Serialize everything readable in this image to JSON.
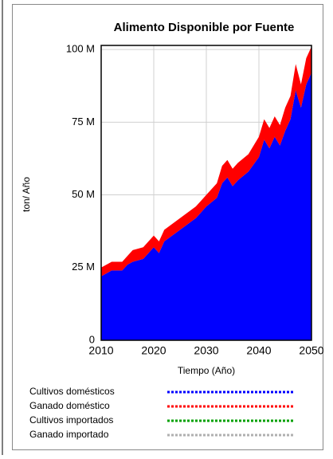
{
  "chart_data": {
    "type": "stacked-area",
    "title": "Alimento Disponible por Fuente",
    "xlabel": "Tiempo (Año)",
    "ylabel": "ton/ Año",
    "x": [
      2010,
      2012,
      2014,
      2015,
      2016,
      2018,
      2020,
      2021,
      2022,
      2025,
      2028,
      2030,
      2032,
      2033,
      2034,
      2035,
      2036,
      2038,
      2040,
      2041,
      2042,
      2043,
      2044,
      2045,
      2046,
      2047,
      2048,
      2049,
      2050
    ],
    "series": [
      {
        "name": "Cultivos domésticos",
        "color": "#0000ff",
        "values": [
          22,
          24,
          24,
          26,
          27,
          28,
          32,
          30,
          34,
          38,
          42,
          46,
          49,
          54,
          56,
          53,
          55,
          58,
          63,
          69,
          66,
          70,
          67,
          72,
          76,
          86,
          80,
          88,
          92
        ]
      },
      {
        "name": "Ganado doméstico",
        "color": "#ff0000",
        "values": [
          3,
          3,
          3,
          3,
          4,
          4,
          4,
          4,
          4,
          4,
          4,
          4,
          5,
          6,
          6,
          6,
          6,
          6,
          7,
          7,
          7,
          7,
          7,
          8,
          8,
          9,
          8,
          9,
          9
        ]
      },
      {
        "name": "Cultivos importados",
        "color": "#00a000"
      },
      {
        "name": "Ganado importado",
        "color": "#b0b0b0"
      }
    ],
    "xlim": [
      2010,
      2050
    ],
    "xticks": [
      2010,
      2020,
      2030,
      2040,
      2050
    ],
    "ylim": [
      0,
      101.4
    ],
    "yticks": [
      0,
      {
        "value": 25,
        "label": "25 M"
      },
      {
        "value": 50,
        "label": "50 M"
      },
      {
        "value": 75,
        "label": "75 M"
      },
      {
        "value": 100,
        "label": "100 M"
      }
    ],
    "grid": true
  }
}
